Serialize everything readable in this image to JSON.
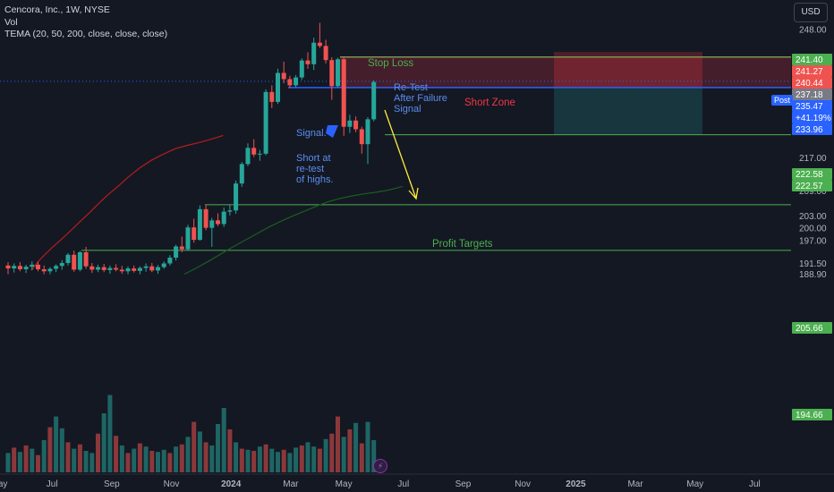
{
  "header": {
    "symbol_line": "Cencora, Inc., 1W, NYSE",
    "volume_label": "Vol",
    "indicator_label": "TEMA (20, 50, 200, close, close, close)",
    "currency_button": "USD"
  },
  "colors": {
    "background": "#141823",
    "up": "#26a69a",
    "down": "#ef5350",
    "level_line": "#4caf50",
    "price_line": "#2962ff",
    "annotation_blue": "#5b8def",
    "annotation_red": "#f23645",
    "arrow": "#ffeb3b"
  },
  "annotations": {
    "stop_loss": "Stop Loss",
    "retest": [
      "Re-Test",
      "After Failure",
      "Signal"
    ],
    "short_zone": "Short Zone",
    "signal": "Signal.",
    "short_at": [
      "Short at",
      "re-test",
      "of highs."
    ],
    "profit_targets": "Profit Targets"
  },
  "price_axis": {
    "ticks": [
      "248.00",
      "229.00",
      "225.00",
      "217.00",
      "213.00",
      "209.00",
      "203.00",
      "200.00",
      "197.00",
      "191.50",
      "188.90"
    ],
    "tags": [
      {
        "label": "241.40",
        "color": "#4caf50"
      },
      {
        "label": "241.27",
        "color": "#ef5350"
      },
      {
        "label": "240.44",
        "color": "#ef5350"
      },
      {
        "label": "237.18",
        "color": "#787b86"
      },
      {
        "label": "235.47",
        "color": "#2962ff"
      },
      {
        "label": "+41.19%",
        "color": "#2962ff"
      },
      {
        "label": "233.96",
        "color": "#2962ff"
      },
      {
        "label": "222.58",
        "color": "#4caf50"
      },
      {
        "label": "222.57",
        "color": "#4caf50"
      },
      {
        "label": "205.66",
        "color": "#4caf50"
      },
      {
        "label": "194.66",
        "color": "#4caf50"
      }
    ],
    "post_tag": "Post"
  },
  "time_axis": {
    "labels": [
      "May",
      "Jul",
      "Sep",
      "Nov",
      "2024",
      "Mar",
      "May",
      "Jul",
      "Sep",
      "Nov",
      "2025",
      "Mar",
      "May",
      "Jul"
    ]
  },
  "chart_data": {
    "type": "candlestick",
    "title": "Cencora, Inc., 1W, NYSE",
    "interval": "1W",
    "price_range": [
      188.9,
      250.0
    ],
    "candles": [
      {
        "o": 191.0,
        "h": 191.8,
        "l": 188.9,
        "c": 190.3
      },
      {
        "o": 190.3,
        "h": 191.5,
        "l": 189.3,
        "c": 190.9
      },
      {
        "o": 190.9,
        "h": 191.8,
        "l": 189.6,
        "c": 190.1
      },
      {
        "o": 190.1,
        "h": 191.2,
        "l": 189.2,
        "c": 190.7
      },
      {
        "o": 190.7,
        "h": 192.0,
        "l": 189.9,
        "c": 191.2
      },
      {
        "o": 191.2,
        "h": 191.9,
        "l": 189.6,
        "c": 190.1
      },
      {
        "o": 190.1,
        "h": 191.0,
        "l": 188.9,
        "c": 189.6
      },
      {
        "o": 189.6,
        "h": 190.6,
        "l": 188.9,
        "c": 190.2
      },
      {
        "o": 190.2,
        "h": 191.3,
        "l": 189.4,
        "c": 190.9
      },
      {
        "o": 190.9,
        "h": 192.3,
        "l": 190.0,
        "c": 191.6
      },
      {
        "o": 191.6,
        "h": 194.0,
        "l": 191.0,
        "c": 193.6
      },
      {
        "o": 193.6,
        "h": 194.6,
        "l": 189.5,
        "c": 190.0
      },
      {
        "o": 190.0,
        "h": 194.5,
        "l": 189.6,
        "c": 194.2
      },
      {
        "o": 194.2,
        "h": 195.5,
        "l": 190.2,
        "c": 190.8
      },
      {
        "o": 190.8,
        "h": 191.6,
        "l": 189.2,
        "c": 190.0
      },
      {
        "o": 190.0,
        "h": 191.2,
        "l": 189.4,
        "c": 190.6
      },
      {
        "o": 190.6,
        "h": 191.4,
        "l": 189.4,
        "c": 189.9
      },
      {
        "o": 189.9,
        "h": 191.0,
        "l": 189.0,
        "c": 190.4
      },
      {
        "o": 190.4,
        "h": 191.3,
        "l": 189.6,
        "c": 190.0
      },
      {
        "o": 190.0,
        "h": 190.9,
        "l": 189.0,
        "c": 189.6
      },
      {
        "o": 189.6,
        "h": 190.8,
        "l": 188.9,
        "c": 190.3
      },
      {
        "o": 190.3,
        "h": 191.0,
        "l": 189.3,
        "c": 189.7
      },
      {
        "o": 189.7,
        "h": 190.8,
        "l": 188.9,
        "c": 190.4
      },
      {
        "o": 190.4,
        "h": 191.5,
        "l": 189.5,
        "c": 190.8
      },
      {
        "o": 190.8,
        "h": 191.6,
        "l": 189.4,
        "c": 189.8
      },
      {
        "o": 189.8,
        "h": 191.1,
        "l": 189.0,
        "c": 190.6
      },
      {
        "o": 190.6,
        "h": 192.0,
        "l": 190.2,
        "c": 191.5
      },
      {
        "o": 191.5,
        "h": 193.5,
        "l": 191.0,
        "c": 192.9
      },
      {
        "o": 192.9,
        "h": 196.0,
        "l": 192.2,
        "c": 195.6
      },
      {
        "o": 195.6,
        "h": 198.0,
        "l": 194.2,
        "c": 194.9
      },
      {
        "o": 194.9,
        "h": 200.8,
        "l": 194.5,
        "c": 200.2
      },
      {
        "o": 200.2,
        "h": 202.3,
        "l": 196.5,
        "c": 197.2
      },
      {
        "o": 197.2,
        "h": 205.5,
        "l": 197.0,
        "c": 204.6
      },
      {
        "o": 204.6,
        "h": 205.6,
        "l": 199.5,
        "c": 200.1
      },
      {
        "o": 200.1,
        "h": 202.5,
        "l": 195.5,
        "c": 201.9
      },
      {
        "o": 201.9,
        "h": 203.6,
        "l": 200.5,
        "c": 201.0
      },
      {
        "o": 201.0,
        "h": 205.0,
        "l": 200.3,
        "c": 204.0
      },
      {
        "o": 204.0,
        "h": 205.6,
        "l": 203.1,
        "c": 204.3
      },
      {
        "o": 204.3,
        "h": 211.5,
        "l": 203.5,
        "c": 210.8
      },
      {
        "o": 210.8,
        "h": 216.0,
        "l": 210.0,
        "c": 215.5
      },
      {
        "o": 215.5,
        "h": 220.5,
        "l": 215.0,
        "c": 219.4
      },
      {
        "o": 219.4,
        "h": 221.5,
        "l": 217.2,
        "c": 217.8
      },
      {
        "o": 217.8,
        "h": 218.9,
        "l": 216.3,
        "c": 218.0
      },
      {
        "o": 218.0,
        "h": 233.5,
        "l": 217.6,
        "c": 232.9
      },
      {
        "o": 232.9,
        "h": 234.5,
        "l": 229.0,
        "c": 230.5
      },
      {
        "o": 230.5,
        "h": 238.5,
        "l": 230.0,
        "c": 237.5
      },
      {
        "o": 237.5,
        "h": 240.2,
        "l": 235.0,
        "c": 236.0
      },
      {
        "o": 236.0,
        "h": 236.8,
        "l": 233.8,
        "c": 234.5
      },
      {
        "o": 234.5,
        "h": 237.0,
        "l": 234.0,
        "c": 236.4
      },
      {
        "o": 236.4,
        "h": 241.0,
        "l": 235.8,
        "c": 240.5
      },
      {
        "o": 240.5,
        "h": 242.5,
        "l": 238.5,
        "c": 239.6
      },
      {
        "o": 239.6,
        "h": 246.0,
        "l": 238.2,
        "c": 244.8
      },
      {
        "o": 244.8,
        "h": 249.6,
        "l": 243.5,
        "c": 244.0
      },
      {
        "o": 244.0,
        "h": 245.5,
        "l": 239.8,
        "c": 240.6
      },
      {
        "o": 240.6,
        "h": 241.3,
        "l": 231.0,
        "c": 234.3
      },
      {
        "o": 234.3,
        "h": 241.2,
        "l": 234.0,
        "c": 240.8
      },
      {
        "o": 240.8,
        "h": 241.3,
        "l": 222.3,
        "c": 224.5
      },
      {
        "o": 224.5,
        "h": 227.4,
        "l": 223.0,
        "c": 226.0
      },
      {
        "o": 226.0,
        "h": 227.0,
        "l": 223.2,
        "c": 223.9
      },
      {
        "o": 223.9,
        "h": 224.5,
        "l": 218.0,
        "c": 220.3
      },
      {
        "o": 220.3,
        "h": 226.8,
        "l": 215.5,
        "c": 226.3
      },
      {
        "o": 226.3,
        "h": 235.7,
        "l": 225.8,
        "c": 235.3
      }
    ],
    "volume": [
      {
        "v": 0.18,
        "up": true
      },
      {
        "v": 0.23,
        "up": false
      },
      {
        "v": 0.19,
        "up": true
      },
      {
        "v": 0.25,
        "up": false
      },
      {
        "v": 0.22,
        "up": true
      },
      {
        "v": 0.16,
        "up": false
      },
      {
        "v": 0.3,
        "up": true
      },
      {
        "v": 0.42,
        "up": false
      },
      {
        "v": 0.52,
        "up": true
      },
      {
        "v": 0.41,
        "up": true
      },
      {
        "v": 0.28,
        "up": false
      },
      {
        "v": 0.22,
        "up": true
      },
      {
        "v": 0.26,
        "up": false
      },
      {
        "v": 0.2,
        "up": true
      },
      {
        "v": 0.18,
        "up": true
      },
      {
        "v": 0.36,
        "up": false
      },
      {
        "v": 0.55,
        "up": true
      },
      {
        "v": 0.72,
        "up": true
      },
      {
        "v": 0.34,
        "up": false
      },
      {
        "v": 0.25,
        "up": true
      },
      {
        "v": 0.18,
        "up": false
      },
      {
        "v": 0.22,
        "up": true
      },
      {
        "v": 0.27,
        "up": false
      },
      {
        "v": 0.24,
        "up": true
      },
      {
        "v": 0.2,
        "up": false
      },
      {
        "v": 0.19,
        "up": true
      },
      {
        "v": 0.21,
        "up": true
      },
      {
        "v": 0.18,
        "up": false
      },
      {
        "v": 0.24,
        "up": true
      },
      {
        "v": 0.26,
        "up": false
      },
      {
        "v": 0.33,
        "up": true
      },
      {
        "v": 0.47,
        "up": false
      },
      {
        "v": 0.38,
        "up": true
      },
      {
        "v": 0.28,
        "up": false
      },
      {
        "v": 0.25,
        "up": true
      },
      {
        "v": 0.45,
        "up": true
      },
      {
        "v": 0.6,
        "up": true
      },
      {
        "v": 0.4,
        "up": false
      },
      {
        "v": 0.28,
        "up": true
      },
      {
        "v": 0.22,
        "up": false
      },
      {
        "v": 0.21,
        "up": true
      },
      {
        "v": 0.2,
        "up": false
      },
      {
        "v": 0.24,
        "up": true
      },
      {
        "v": 0.26,
        "up": false
      },
      {
        "v": 0.22,
        "up": true
      },
      {
        "v": 0.19,
        "up": true
      },
      {
        "v": 0.21,
        "up": false
      },
      {
        "v": 0.18,
        "up": true
      },
      {
        "v": 0.23,
        "up": true
      },
      {
        "v": 0.25,
        "up": false
      },
      {
        "v": 0.28,
        "up": true
      },
      {
        "v": 0.24,
        "up": true
      },
      {
        "v": 0.22,
        "up": false
      },
      {
        "v": 0.31,
        "up": true
      },
      {
        "v": 0.36,
        "up": false
      },
      {
        "v": 0.52,
        "up": false
      },
      {
        "v": 0.33,
        "up": true
      },
      {
        "v": 0.4,
        "up": false
      },
      {
        "v": 0.46,
        "up": true
      },
      {
        "v": 0.27,
        "up": false
      },
      {
        "v": 0.47,
        "up": true
      },
      {
        "v": 0.3,
        "up": true
      }
    ],
    "levels": [
      {
        "price": 241.4,
        "label": "Stop Loss"
      },
      {
        "price": 222.58,
        "label": "Profit Targets"
      },
      {
        "price": 205.66
      },
      {
        "price": 194.66
      }
    ],
    "price_line": 235.47,
    "short_zone": {
      "top": 241.27,
      "bottom": 233.96
    },
    "target_zone": {
      "top": 233.96,
      "bottom": 222.57
    },
    "tema_red": [
      [
        203.9,
        189.8
      ],
      [
        204.4,
        190.8
      ],
      [
        205.0,
        191.9
      ],
      [
        206.1,
        193.6
      ],
      [
        207.4,
        195.4
      ],
      [
        208.8,
        197.2
      ],
      [
        210.3,
        199.2
      ],
      [
        211.8,
        201.3
      ],
      [
        213.4,
        203.5
      ],
      [
        215.0,
        205.8
      ],
      [
        216.6,
        208.0
      ],
      [
        218.4,
        210.2
      ],
      [
        220.0,
        212.3
      ],
      [
        221.9,
        214.5
      ],
      [
        223.9,
        216.4
      ],
      [
        225.9,
        217.9
      ],
      [
        227.9,
        219.2
      ],
      [
        229.9,
        220.0
      ],
      [
        231.9,
        220.7
      ],
      [
        233.9,
        221.5
      ],
      [
        235.9,
        222.4
      ]
    ],
    "tema_green": [
      [
        229.4,
        188.9
      ],
      [
        231.4,
        190.4
      ],
      [
        233.4,
        192.0
      ],
      [
        235.4,
        193.7
      ],
      [
        237.4,
        195.4
      ],
      [
        239.4,
        197.0
      ],
      [
        241.4,
        198.6
      ],
      [
        243.4,
        200.2
      ],
      [
        245.4,
        201.6
      ],
      [
        247.4,
        202.9
      ],
      [
        249.4,
        204.1
      ],
      [
        251.4,
        205.3
      ],
      [
        253.4,
        206.4
      ],
      [
        255.4,
        207.2
      ],
      [
        257.4,
        207.8
      ],
      [
        259.4,
        208.3
      ],
      [
        261.4,
        208.7
      ],
      [
        263.4,
        209.2
      ],
      [
        264.8,
        209.7
      ],
      [
        265.8,
        210.1
      ]
    ]
  }
}
